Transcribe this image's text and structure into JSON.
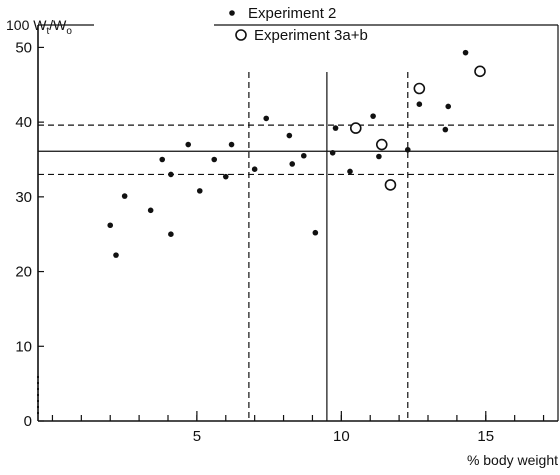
{
  "chart_data": {
    "type": "scatter",
    "ylabel": "100 W",
    "ylabel_sub1": "t",
    "ylabel_mid": "/W",
    "ylabel_sub2": "o",
    "xlabel": "% body weight",
    "xlim": [
      -0.5,
      17.5
    ],
    "ylim": [
      0,
      53
    ],
    "x_ticks": [
      5,
      10,
      15
    ],
    "y_ticks": [
      0,
      10,
      20,
      30,
      40,
      50
    ],
    "grid": false,
    "legend_position": "top-center",
    "series": [
      {
        "name": "Experiment  2",
        "marker": "filled-circle",
        "points": [
          [
            2.0,
            26.2
          ],
          [
            2.2,
            22.2
          ],
          [
            2.5,
            30.1
          ],
          [
            3.4,
            28.2
          ],
          [
            3.8,
            35.0
          ],
          [
            4.1,
            33.0
          ],
          [
            4.1,
            25.0
          ],
          [
            4.7,
            37.0
          ],
          [
            5.1,
            30.8
          ],
          [
            5.6,
            35.0
          ],
          [
            6.0,
            32.7
          ],
          [
            6.2,
            37.0
          ],
          [
            7.0,
            33.7
          ],
          [
            7.4,
            40.5
          ],
          [
            8.2,
            38.2
          ],
          [
            8.3,
            34.4
          ],
          [
            8.7,
            35.5
          ],
          [
            9.1,
            25.2
          ],
          [
            9.8,
            39.2
          ],
          [
            9.7,
            35.9
          ],
          [
            10.3,
            33.4
          ],
          [
            11.1,
            40.8
          ],
          [
            11.3,
            35.4
          ],
          [
            12.3,
            36.3
          ],
          [
            12.7,
            42.4
          ],
          [
            13.6,
            39.0
          ],
          [
            13.7,
            42.1
          ],
          [
            14.3,
            49.3
          ]
        ]
      },
      {
        "name": "Experiment  3a+b",
        "marker": "open-circle",
        "points": [
          [
            10.5,
            39.2
          ],
          [
            11.4,
            37.0
          ],
          [
            11.7,
            31.6
          ],
          [
            12.7,
            44.5
          ],
          [
            14.8,
            46.8
          ]
        ]
      }
    ],
    "reference_lines": {
      "horizontal_solid": [
        36.1
      ],
      "horizontal_dashed": [
        39.6,
        33.0
      ],
      "vertical_solid": [
        9.5
      ],
      "vertical_dashed": [
        6.8,
        12.3
      ]
    }
  }
}
